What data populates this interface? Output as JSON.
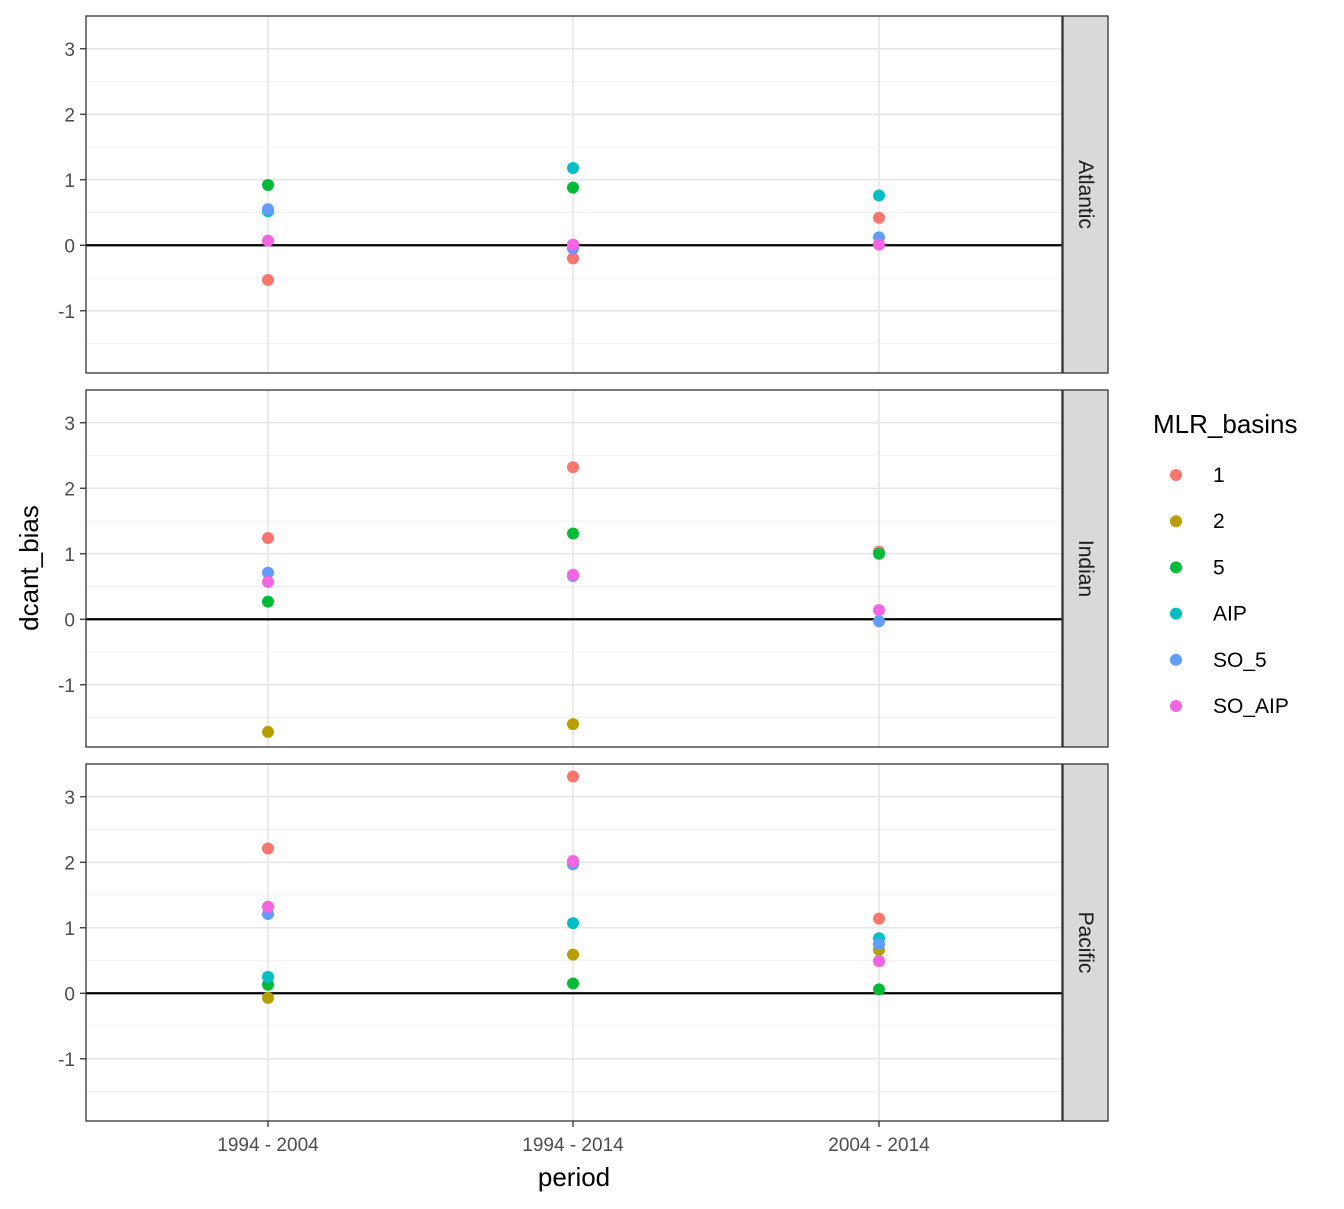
{
  "chart_data": {
    "type": "scatter",
    "xlabel": "period",
    "ylabel": "dcant_bias",
    "categories": [
      "1994 - 2004",
      "1994 - 2014",
      "2004 - 2014"
    ],
    "y_ticks": [
      "-1",
      "0",
      "1",
      "2",
      "3"
    ],
    "ylim": [
      -1.95,
      3.5
    ],
    "reference_line_y": 0,
    "grid": true,
    "legend": {
      "title": "MLR_basins",
      "placement": "right",
      "entries": [
        {
          "label": "1",
          "color": "#F8766D"
        },
        {
          "label": "2",
          "color": "#B79F00"
        },
        {
          "label": "5",
          "color": "#00BA38"
        },
        {
          "label": "AIP",
          "color": "#00BFC4"
        },
        {
          "label": "SO_5",
          "color": "#619CFF"
        },
        {
          "label": "SO_AIP",
          "color": "#F564E3"
        }
      ]
    },
    "facets": [
      {
        "name": "Atlantic",
        "series": [
          {
            "name": "1",
            "values": [
              -0.53,
              -0.2,
              0.42
            ]
          },
          {
            "name": "5",
            "values": [
              0.92,
              0.88,
              null
            ]
          },
          {
            "name": "AIP",
            "values": [
              0.52,
              1.18,
              0.76
            ]
          },
          {
            "name": "SO_5",
            "values": [
              0.55,
              -0.05,
              0.12
            ]
          },
          {
            "name": "SO_AIP",
            "values": [
              0.07,
              0.01,
              0.01
            ]
          }
        ]
      },
      {
        "name": "Indian",
        "series": [
          {
            "name": "1",
            "values": [
              1.24,
              2.32,
              1.03
            ]
          },
          {
            "name": "2",
            "values": [
              -1.72,
              -1.6,
              null
            ]
          },
          {
            "name": "5",
            "values": [
              0.27,
              1.31,
              1.0
            ]
          },
          {
            "name": "SO_5",
            "values": [
              0.71,
              0.66,
              -0.03
            ]
          },
          {
            "name": "SO_AIP",
            "values": [
              0.57,
              0.68,
              0.14
            ]
          }
        ]
      },
      {
        "name": "Pacific",
        "series": [
          {
            "name": "1",
            "values": [
              2.21,
              3.31,
              1.14
            ]
          },
          {
            "name": "2",
            "values": [
              -0.07,
              0.59,
              0.66
            ]
          },
          {
            "name": "5",
            "values": [
              0.13,
              0.15,
              0.06
            ]
          },
          {
            "name": "AIP",
            "values": [
              0.25,
              1.07,
              0.84
            ]
          },
          {
            "name": "SO_5",
            "values": [
              1.21,
              1.97,
              0.75
            ]
          },
          {
            "name": "SO_AIP",
            "values": [
              1.32,
              2.02,
              0.49
            ]
          }
        ]
      }
    ]
  }
}
